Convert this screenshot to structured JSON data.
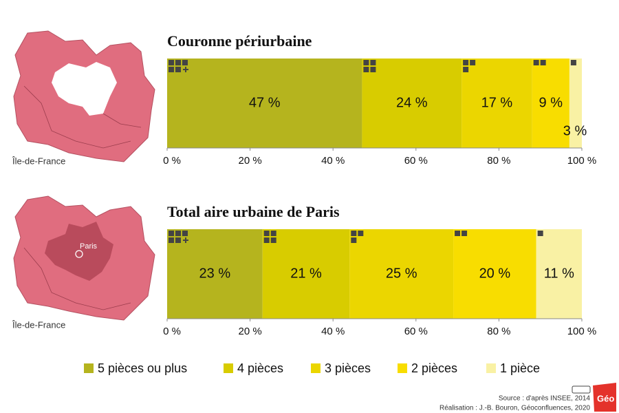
{
  "legend": [
    {
      "name": "5 pièces ou plus",
      "color": "#b5b41e"
    },
    {
      "name": "4 pièces",
      "color": "#d8cc00"
    },
    {
      "name": "3 pièces",
      "color": "#ebd600"
    },
    {
      "name": "2 pièces",
      "color": "#f8dd00"
    },
    {
      "name": "1 pièce",
      "color": "#f9f1a4"
    }
  ],
  "chart_data": [
    {
      "type": "bar",
      "stacked": true,
      "horizontal": true,
      "title": "Couronne périurbaine",
      "values": [
        47,
        24,
        17,
        9,
        3
      ],
      "value_labels": [
        "47 %",
        "24 %",
        "17 %",
        "9 %",
        "3 %"
      ],
      "xlim": [
        0,
        100
      ],
      "xticks": [
        {
          "value": 0,
          "label": "0 %"
        },
        {
          "value": 20,
          "label": "20 %"
        },
        {
          "value": 40,
          "label": "40 %"
        },
        {
          "value": 60,
          "label": "60 %"
        },
        {
          "value": 80,
          "label": "80 %"
        },
        {
          "value": 100,
          "label": "100 %"
        }
      ]
    },
    {
      "type": "bar",
      "stacked": true,
      "horizontal": true,
      "title": "Total aire urbaine de Paris",
      "values": [
        23,
        21,
        25,
        20,
        11
      ],
      "value_labels": [
        "23 %",
        "21 %",
        "25 %",
        "20 %",
        "11 %"
      ],
      "xlim": [
        0,
        100
      ],
      "xticks": [
        {
          "value": 0,
          "label": "0 %"
        },
        {
          "value": 20,
          "label": "20 %"
        },
        {
          "value": 40,
          "label": "40 %"
        },
        {
          "value": 60,
          "label": "60 %"
        },
        {
          "value": 80,
          "label": "80 %"
        },
        {
          "value": 100,
          "label": "100 %"
        }
      ]
    }
  ],
  "maps": [
    {
      "label": "Île-de-France"
    },
    {
      "label": "Île-de-France",
      "city": "Paris"
    }
  ],
  "footer": {
    "source": "Source : d'après INSEE, 2014",
    "credit": "Réalisation : J.-B. Bouron, Géoconfluences, 2020",
    "logo": "Géo"
  }
}
